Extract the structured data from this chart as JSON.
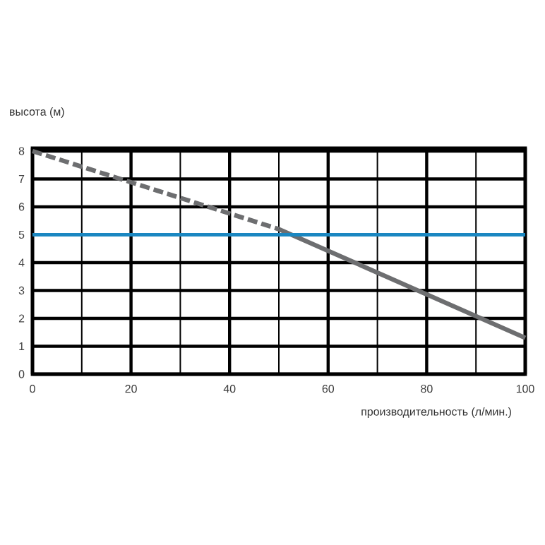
{
  "chart_data": {
    "type": "line",
    "xlabel": "производительность (л/мин.)",
    "ylabel": "высота (м)",
    "series": [
      {
        "x": [
          0,
          50
        ],
        "values": [
          8,
          5.2
        ],
        "color": "#6d6e70",
        "line_style": "dashed"
      },
      {
        "x": [
          50,
          100
        ],
        "values": [
          5.2,
          1.3
        ],
        "color": "#6d6e70",
        "line_style": "solid"
      }
    ],
    "xlim": [
      0,
      100
    ],
    "ylim": [
      0,
      8.1
    ],
    "xticks": [
      0,
      20,
      40,
      60,
      80,
      100
    ],
    "yticks": [
      0,
      1,
      2,
      3,
      4,
      5,
      6,
      7,
      8
    ],
    "grid": true,
    "ref_lines": [
      {
        "axis": "y",
        "value": 5,
        "color": "#1a87c1"
      }
    ]
  }
}
